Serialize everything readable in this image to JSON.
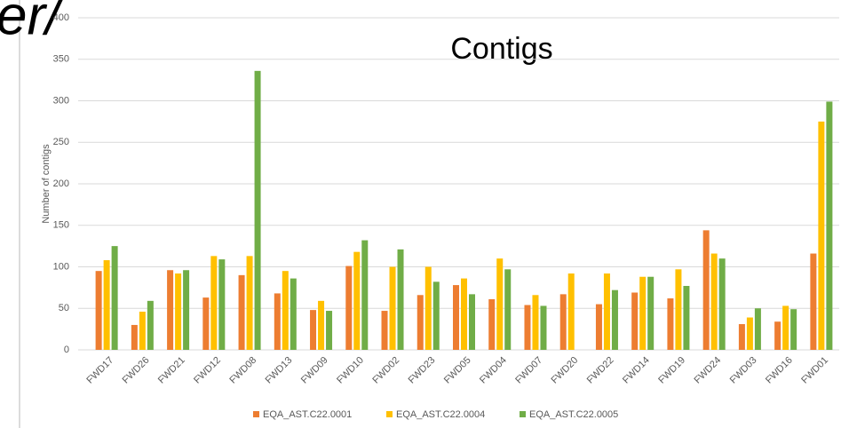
{
  "chart_data": {
    "type": "bar",
    "fragment": "er/",
    "title": "Contigs",
    "y_label": "Number of contigs",
    "categories": [
      "FWD17",
      "FWD26",
      "FWD21",
      "FWD12",
      "FWD08",
      "FWD13",
      "FWD09",
      "FWD10",
      "FWD02",
      "FWD23",
      "FWD05",
      "FWD04",
      "FWD07",
      "FWD20",
      "FWD22",
      "FWD14",
      "FWD19",
      "FWD24",
      "FWD03",
      "FWD16",
      "FWD01"
    ],
    "series": [
      {
        "name": "EQA_AST.C22.0001",
        "color": "#ed7d31",
        "values": [
          95,
          30,
          96,
          63,
          90,
          68,
          48,
          101,
          47,
          66,
          78,
          61,
          54,
          67,
          55,
          69,
          62,
          144,
          31,
          34,
          116
        ]
      },
      {
        "name": "EQA_AST.C22.0004",
        "color": "#ffc000",
        "values": [
          108,
          46,
          92,
          113,
          113,
          95,
          59,
          118,
          100,
          100,
          86,
          110,
          66,
          92,
          92,
          88,
          97,
          116,
          39,
          53,
          275
        ]
      },
      {
        "name": "EQA_AST.C22.0005",
        "color": "#70ad47",
        "values": [
          125,
          59,
          96,
          109,
          336,
          86,
          47,
          132,
          121,
          82,
          67,
          97,
          53,
          null,
          72,
          88,
          77,
          110,
          50,
          49,
          299
        ]
      }
    ],
    "ylim": [
      0,
      400
    ],
    "yticks": [
      0,
      50,
      100,
      150,
      200,
      250,
      300,
      350,
      400
    ],
    "grid": true,
    "legend": "bottom"
  }
}
